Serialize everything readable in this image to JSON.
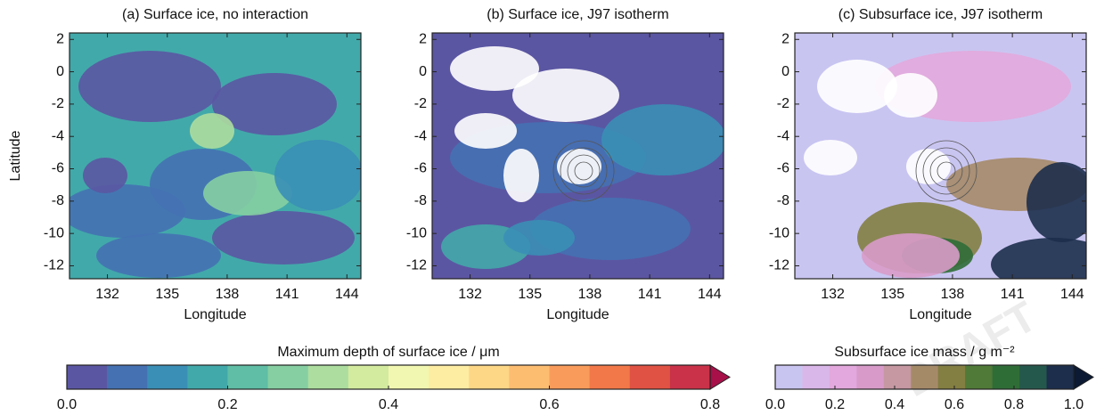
{
  "chart_data": [
    {
      "type": "contour",
      "title": "(a) Surface ice, no interaction",
      "xlabel": "Longitude",
      "ylabel": "Latitude",
      "xlim": [
        130.1,
        144.7
      ],
      "ylim": [
        -12.8,
        2.4
      ],
      "xticks": [
        132,
        135,
        138,
        141,
        144
      ],
      "yticks": [
        2,
        0,
        -2,
        -4,
        -6,
        -8,
        -10,
        -12
      ]
    },
    {
      "type": "contour",
      "title": "(b) Surface ice, J97 isotherm",
      "xlabel": "Longitude",
      "xlim": [
        130.1,
        144.7
      ],
      "ylim": [
        -12.8,
        2.4
      ],
      "xticks": [
        132,
        135,
        138,
        141,
        144
      ],
      "yticks": [
        2,
        0,
        -2,
        -4,
        -6,
        -8,
        -10,
        -12
      ]
    },
    {
      "type": "contour",
      "title": "(c) Subsurface ice, J97 isotherm",
      "xlabel": "Longitude",
      "xlim": [
        130.1,
        144.7
      ],
      "ylim": [
        -12.8,
        2.4
      ],
      "xticks": [
        132,
        135,
        138,
        141,
        144
      ],
      "yticks": [
        2,
        0,
        -2,
        -4,
        -6,
        -8,
        -10,
        -12
      ]
    }
  ],
  "colorbars": [
    {
      "label": "Maximum depth of surface ice / μm",
      "lim": [
        0,
        0.8
      ],
      "ticks": [
        {
          "value": 0,
          "label": "0.0"
        },
        {
          "value": 0.2,
          "label": "0.2"
        },
        {
          "value": 0.4,
          "label": "0.4"
        },
        {
          "value": 0.6,
          "label": "0.6"
        },
        {
          "value": 0.8,
          "label": "0.8"
        }
      ],
      "colors": [
        "#5b56a2",
        "#4571b3",
        "#3a8fb6",
        "#42a9aa",
        "#5fbea5",
        "#86cfa2",
        "#addd9f",
        "#d3eb9f",
        "#f1f7b0",
        "#fdeda3",
        "#fdd686",
        "#fdbd71",
        "#f99c5b",
        "#f27849",
        "#e05243",
        "#c93249"
      ],
      "over_color": "#a8104a"
    },
    {
      "label": "Subsurface ice mass / g m⁻²",
      "lim": [
        0,
        1
      ],
      "ticks": [
        {
          "value": 0,
          "label": "0.0"
        },
        {
          "value": 0.2,
          "label": "0.2"
        },
        {
          "value": 0.4,
          "label": "0.4"
        },
        {
          "value": 0.6,
          "label": "0.6"
        },
        {
          "value": 0.8,
          "label": "0.8"
        },
        {
          "value": 1,
          "label": "1.0"
        }
      ],
      "colors": [
        "#c9c5f1",
        "#dab7e9",
        "#e3a8dd",
        "#d89bc9",
        "#c598a2",
        "#a58a68",
        "#837e42",
        "#4f7a37",
        "#2f6d37",
        "#25584d",
        "#1c2e4b"
      ],
      "over_color": "#0c1a33"
    }
  ],
  "watermark": "DRAFT"
}
